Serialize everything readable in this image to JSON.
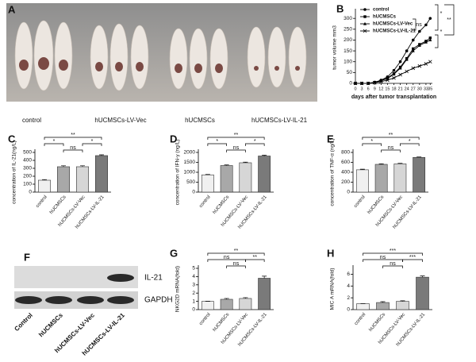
{
  "photo": {
    "panel": "A",
    "labels": [
      "control",
      "hUCMSCs-LV-Vec",
      "hUCMSCs",
      "hUCMSCs-LV-IL-21"
    ]
  },
  "blot": {
    "panel": "F",
    "bands": [
      "IL-21",
      "GAPDH"
    ],
    "lanes": [
      "Control",
      "hUCMSCs",
      "hUCMSCs-LV-Vec",
      "hUCMSCs-LV-IL-21"
    ]
  },
  "chart_data": [
    {
      "type": "line",
      "panel": "B",
      "xlabel": "days after tumor transplantation",
      "ylabel": "tumor volume mm3",
      "x": [
        0,
        3,
        6,
        9,
        12,
        15,
        18,
        21,
        24,
        27,
        30,
        33,
        35
      ],
      "xlim": [
        0,
        36
      ],
      "xticks": [
        0,
        3,
        6,
        9,
        12,
        15,
        18,
        21,
        24,
        27,
        30,
        33,
        35
      ],
      "ylim": [
        0,
        330
      ],
      "yticks": [
        0,
        50,
        100,
        150,
        200,
        250,
        300
      ],
      "legend": "upper left",
      "annotations": [
        "ns",
        "*",
        "**",
        "*"
      ],
      "series": [
        {
          "name": "control",
          "color": "#000000",
          "values": [
            0,
            0,
            0,
            5,
            15,
            30,
            60,
            100,
            150,
            200,
            240,
            270,
            300
          ]
        },
        {
          "name": "hUCMSCs",
          "color": "#000000",
          "values": [
            0,
            0,
            0,
            5,
            12,
            25,
            45,
            75,
            115,
            160,
            180,
            195,
            210
          ]
        },
        {
          "name": "hUCMSCs-LV-Vec",
          "color": "#000000",
          "values": [
            0,
            0,
            0,
            5,
            12,
            22,
            42,
            70,
            110,
            150,
            175,
            190,
            200
          ]
        },
        {
          "name": "hUCMSCs-LV-IL-21",
          "color": "#000000",
          "values": [
            0,
            0,
            0,
            3,
            8,
            15,
            25,
            40,
            55,
            70,
            80,
            90,
            100
          ]
        }
      ]
    },
    {
      "type": "bar",
      "panel": "C",
      "ylabel": "concentration of IL-21(ng/L)",
      "categories": [
        "control",
        "hUCMSCs",
        "hUCMSCs-LV-Vec",
        "hUCMSCs-LV-IL-21"
      ],
      "values": [
        150,
        320,
        320,
        460
      ],
      "errors": [
        8,
        12,
        12,
        10
      ],
      "colors": [
        "#f0f0f0",
        "#a8a8a8",
        "#d6d6d6",
        "#7a7a7a"
      ],
      "ylim": [
        0,
        500
      ],
      "yticks": [
        0,
        100,
        200,
        300,
        400,
        500
      ],
      "annotations": [
        "**",
        "*",
        "ns",
        "*"
      ]
    },
    {
      "type": "bar",
      "panel": "D",
      "ylabel": "concentration of IFN-γ (ng/L)",
      "categories": [
        "control",
        "hUCMSCs",
        "hUCMSCs-LV-Vec",
        "hUCMSCs-LV-IL-21"
      ],
      "values": [
        870,
        1340,
        1480,
        1820
      ],
      "errors": [
        20,
        30,
        30,
        40
      ],
      "colors": [
        "#f0f0f0",
        "#a8a8a8",
        "#d6d6d6",
        "#7a7a7a"
      ],
      "ylim": [
        0,
        2000
      ],
      "yticks": [
        0,
        500,
        1000,
        1500,
        2000
      ],
      "annotations": [
        "**",
        "*",
        "ns",
        "*"
      ]
    },
    {
      "type": "bar",
      "panel": "E",
      "ylabel": "concentration of TNF-α (ng/L)",
      "categories": [
        "control",
        "hUCMSCs",
        "hUCMSCs-LV-Vec",
        "hUCMSCs-LV-IL-21"
      ],
      "values": [
        450,
        560,
        570,
        700
      ],
      "errors": [
        12,
        10,
        10,
        8
      ],
      "colors": [
        "#f0f0f0",
        "#a8a8a8",
        "#d6d6d6",
        "#7a7a7a"
      ],
      "ylim": [
        0,
        800
      ],
      "yticks": [
        0,
        200,
        400,
        600,
        800
      ],
      "annotations": [
        "**",
        "*",
        "ns",
        "*"
      ]
    },
    {
      "type": "bar",
      "panel": "G",
      "ylabel": "NKG2D mRNA(fold)",
      "categories": [
        "control",
        "hUCMSCs",
        "hUCMSCs-LV-Vec",
        "hUCMSCs-LV-IL-21"
      ],
      "values": [
        1.0,
        1.25,
        1.35,
        3.8
      ],
      "errors": [
        0.02,
        0.1,
        0.1,
        0.25
      ],
      "colors": [
        "#f0f0f0",
        "#a8a8a8",
        "#d6d6d6",
        "#7a7a7a"
      ],
      "ylim": [
        0,
        5
      ],
      "yticks": [
        0,
        1,
        2,
        3,
        4,
        5
      ],
      "annotations": [
        "**",
        "ns",
        "**",
        "ns"
      ]
    },
    {
      "type": "bar",
      "panel": "H",
      "ylabel": "MIC A mRNA(fold)",
      "categories": [
        "control",
        "hUCMSCs",
        "hUCMSCs-LV-Vec",
        "hUCMSCs-LV-IL-21"
      ],
      "values": [
        1.0,
        1.2,
        1.4,
        5.5
      ],
      "errors": [
        0.02,
        0.15,
        0.1,
        0.2
      ],
      "colors": [
        "#f0f0f0",
        "#a8a8a8",
        "#d6d6d6",
        "#7a7a7a"
      ],
      "ylim": [
        0,
        7
      ],
      "yticks": [
        0,
        2,
        4,
        6
      ],
      "annotations": [
        "***",
        "ns",
        "***",
        "ns"
      ]
    }
  ]
}
